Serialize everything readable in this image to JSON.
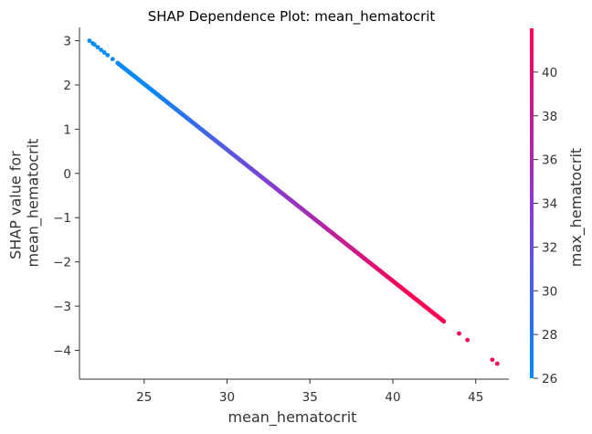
{
  "chart_data": {
    "type": "scatter",
    "title": "SHAP Dependence Plot: mean_hematocrit",
    "xlabel": "mean_hematocrit",
    "ylabel_lines": [
      "SHAP value for",
      "mean_hematocrit"
    ],
    "xlim": [
      21.1,
      47.0
    ],
    "ylim": [
      -4.65,
      3.3
    ],
    "xticks": [
      25,
      30,
      35,
      40,
      45
    ],
    "yticks": [
      3,
      2,
      1,
      0,
      -1,
      -2,
      -3,
      -4
    ],
    "points": {
      "x_range": [
        21.7,
        46.3
      ],
      "y_range": [
        3.0,
        -4.3
      ],
      "density_note": "dense from 23 to 43, sparse at ends",
      "extra_x": [
        21.7,
        21.9,
        22.0,
        22.2,
        22.4,
        22.6,
        22.8,
        23.1,
        44.0,
        44.5,
        46.0,
        46.3
      ]
    },
    "colorbar": {
      "label": "max_hematocrit",
      "range": [
        26,
        42
      ],
      "ticks": [
        26,
        28,
        30,
        32,
        34,
        36,
        38,
        40
      ],
      "colors": [
        "#008afb",
        "#5b4ee0",
        "#ff0052"
      ]
    },
    "grid": false
  }
}
